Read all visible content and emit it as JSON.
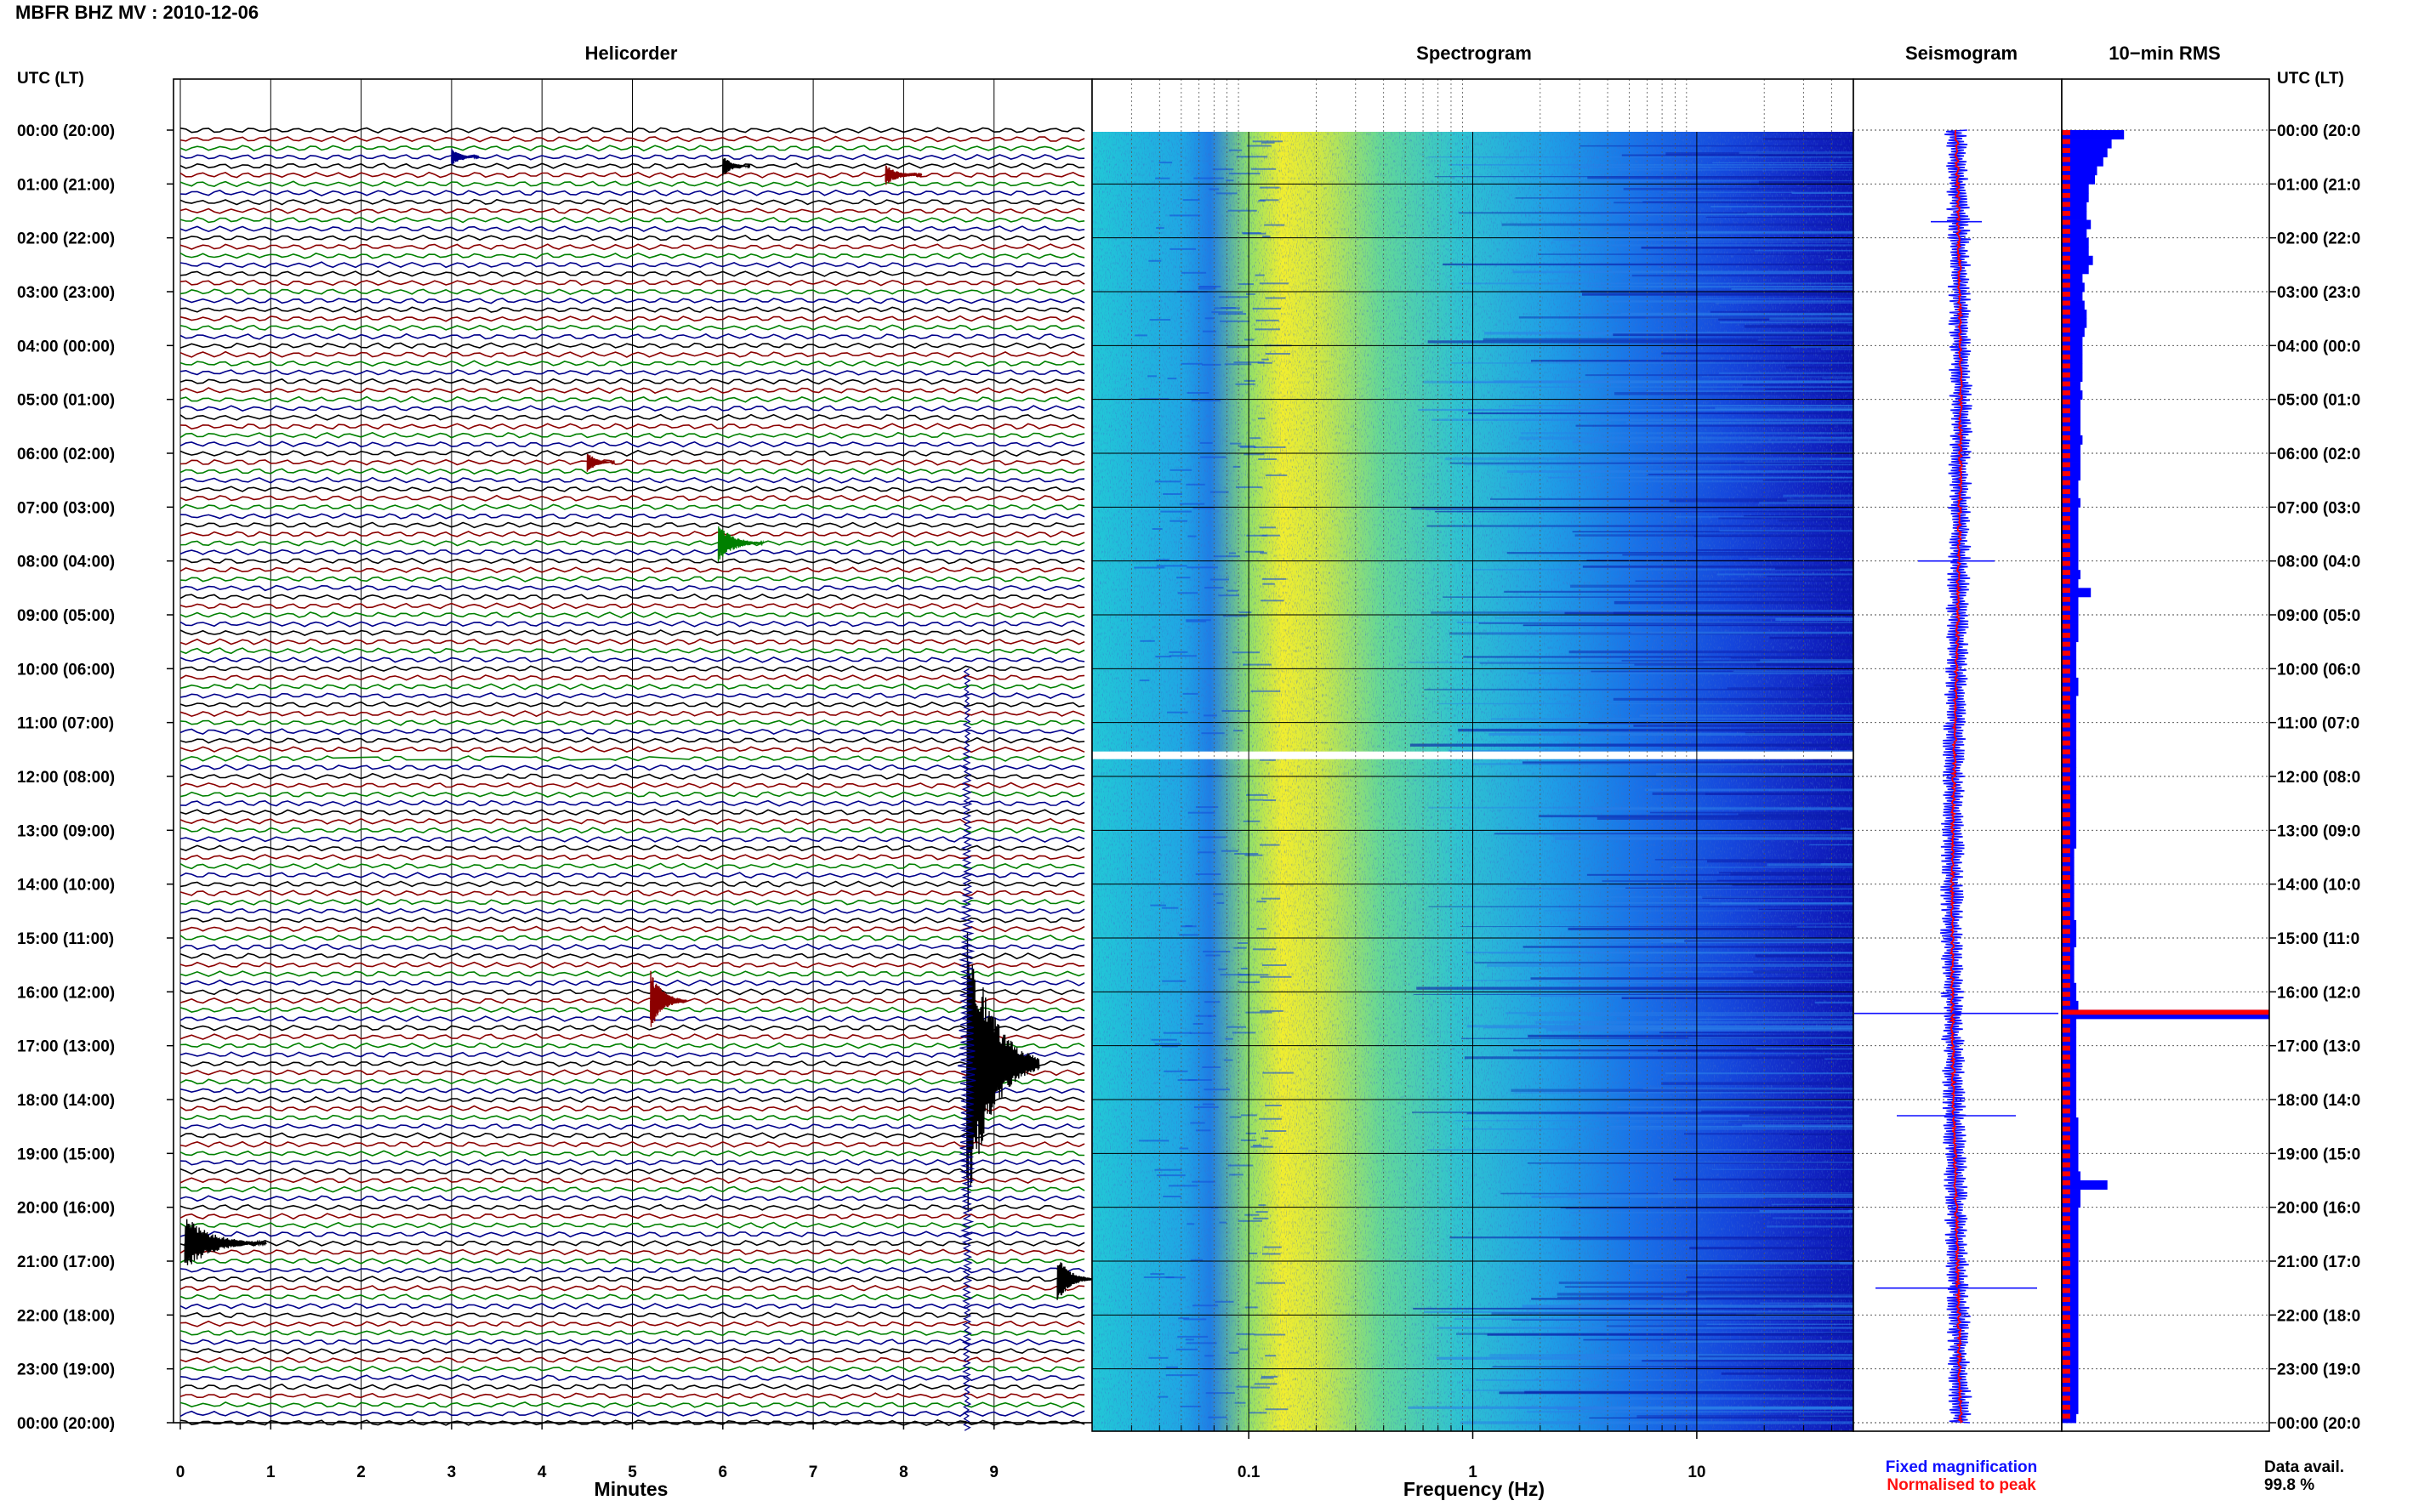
{
  "title": "MBFR BHZ MV : 2010-12-06",
  "colors": {
    "trace_cycle": [
      "#000000",
      "#8b0000",
      "#008000",
      "#00008b"
    ],
    "seis_blue": "#1010ff",
    "seis_red": "#ff0000",
    "rms_blue": "#0000ff",
    "rms_red": "#ff0000"
  },
  "time_axis": {
    "label": "UTC (LT)",
    "ticks": [
      "00:00 (20:00)",
      "01:00 (21:00)",
      "02:00 (22:00)",
      "03:00 (23:00)",
      "04:00 (00:00)",
      "05:00 (01:00)",
      "06:00 (02:00)",
      "07:00 (03:00)",
      "08:00 (04:00)",
      "09:00 (05:00)",
      "10:00 (06:00)",
      "11:00 (07:00)",
      "12:00 (08:00)",
      "13:00 (09:00)",
      "14:00 (10:00)",
      "15:00 (11:00)",
      "16:00 (12:00)",
      "17:00 (13:00)",
      "18:00 (14:00)",
      "19:00 (15:00)",
      "20:00 (16:00)",
      "21:00 (17:00)",
      "22:00 (18:00)",
      "23:00 (19:00)",
      "00:00 (20:00)"
    ],
    "right_ticks": [
      "00:00 (20:0",
      "01:00 (21:0",
      "02:00 (22:0",
      "03:00 (23:0",
      "04:00 (00:0",
      "05:00 (01:0",
      "06:00 (02:0",
      "07:00 (03:0",
      "08:00 (04:0",
      "09:00 (05:0",
      "10:00 (06:0",
      "11:00 (07:0",
      "12:00 (08:0",
      "13:00 (09:0",
      "14:00 (10:0",
      "15:00 (11:0",
      "16:00 (12:0",
      "17:00 (13:0",
      "18:00 (14:0",
      "19:00 (15:0",
      "20:00 (16:0",
      "21:00 (17:0",
      "22:00 (18:0",
      "23:00 (19:0",
      "00:00 (20:0"
    ]
  },
  "helicorder": {
    "title": "Helicorder",
    "xlabel": "Minutes",
    "xticks": [
      "0",
      "1",
      "2",
      "3",
      "4",
      "5",
      "6",
      "7",
      "8",
      "9"
    ],
    "xlim": [
      0,
      10
    ],
    "lines": 144,
    "events": [
      {
        "line": 104,
        "minute": 8.7,
        "amp": 18,
        "dur": 0.8
      },
      {
        "line": 97,
        "minute": 5.2,
        "amp": 3.5,
        "dur": 0.4
      },
      {
        "line": 124,
        "minute": 0.05,
        "amp": 3.2,
        "dur": 0.9
      },
      {
        "line": 128,
        "minute": 9.7,
        "amp": 2.8,
        "dur": 0.4
      },
      {
        "line": 46,
        "minute": 5.95,
        "amp": 2.2,
        "dur": 0.5
      },
      {
        "line": 37,
        "minute": 4.5,
        "amp": 1.2,
        "dur": 0.3
      },
      {
        "line": 4,
        "minute": 6.0,
        "amp": 1.2,
        "dur": 0.3
      },
      {
        "line": 5,
        "minute": 7.8,
        "amp": 1.2,
        "dur": 0.4
      },
      {
        "line": 3,
        "minute": 3.0,
        "amp": 1.0,
        "dur": 0.3
      }
    ]
  },
  "spectrogram": {
    "title": "Spectrogram",
    "xlabel": "Frequency (Hz)",
    "xticks": [
      "0.1",
      "1",
      "10"
    ],
    "xscale": "log",
    "xlim": [
      0.02,
      50
    ],
    "data_gap_hour": 11.6
  },
  "seismogram": {
    "title": "Seismogram",
    "legend": [
      "Fixed magnification",
      "Normalised to peak"
    ]
  },
  "rms": {
    "title": "10−min RMS",
    "data_avail_label": "Data avail.",
    "data_avail_value": "99.8 %",
    "values": [
      30,
      24,
      22,
      20,
      17,
      16,
      13,
      13,
      12,
      12,
      14,
      12,
      13,
      13,
      15,
      13,
      10,
      11,
      10,
      11,
      12,
      12,
      11,
      10,
      10,
      10,
      10,
      10,
      9,
      10,
      9,
      9,
      9,
      9,
      10,
      9,
      9,
      9,
      9,
      8,
      8,
      9,
      8,
      8,
      8,
      8,
      8,
      8,
      8,
      9,
      8,
      14,
      8,
      8,
      8,
      8,
      8,
      7,
      7,
      7,
      7,
      8,
      8,
      7,
      7,
      7,
      7,
      7,
      7,
      7,
      7,
      7,
      7,
      7,
      7,
      7,
      7,
      7,
      7,
      7,
      6,
      6,
      6,
      6,
      6,
      6,
      6,
      6,
      7,
      7,
      7,
      6,
      6,
      6,
      6,
      7,
      7,
      8,
      100,
      7,
      7,
      7,
      7,
      7,
      7,
      7,
      7,
      7,
      7,
      7,
      8,
      8,
      8,
      8,
      8,
      8,
      9,
      22,
      9,
      9,
      8,
      8,
      8,
      8,
      8,
      8,
      8,
      8,
      8,
      8,
      8,
      8,
      8,
      8,
      8,
      8,
      8,
      8,
      8,
      8,
      8,
      8,
      8,
      7
    ]
  }
}
